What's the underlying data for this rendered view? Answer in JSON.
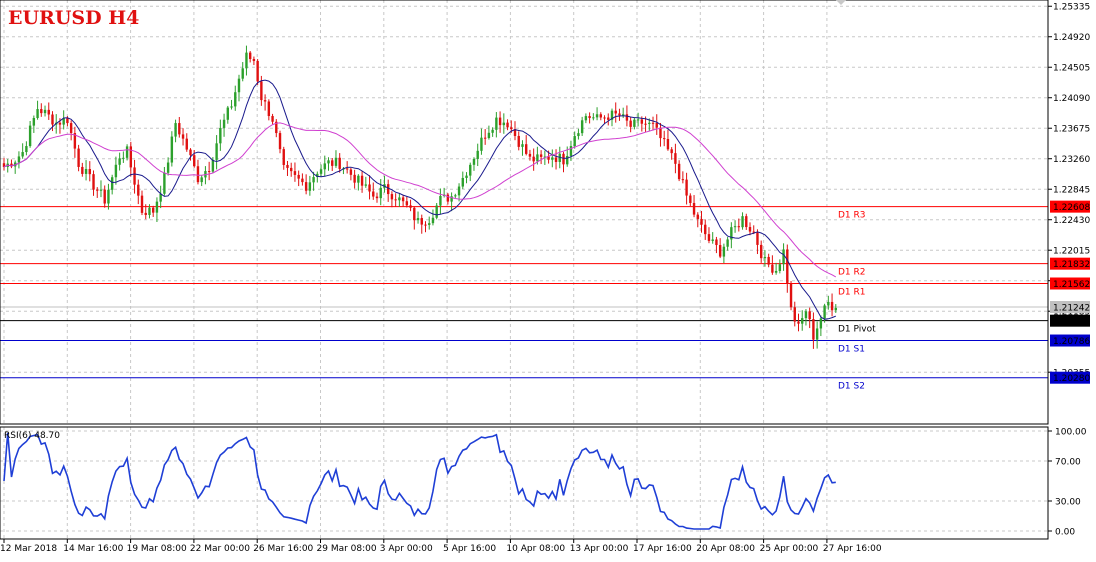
{
  "chart_data": {
    "type": "candlestick",
    "title": "EURUSD  H4",
    "colors": {
      "bull": "#2ca02c",
      "bear": "#e01010",
      "fast_ma": "#1a1a8c",
      "slow_ma": "#d040d0",
      "resistance": "#ff0000",
      "pivot": "#000000",
      "support": "#0000cc",
      "rsi": "#1f3fd6",
      "current_price_box": "#c0c0c0"
    },
    "price_axis": {
      "ylim": [
        1.1965,
        1.2542
      ],
      "ticks": [
        "1.25335",
        "1.24920",
        "1.24505",
        "1.24090",
        "1.23675",
        "1.23260",
        "1.22845",
        "1.22430",
        "1.22015",
        "1.21600",
        "1.21185",
        "1.20355"
      ]
    },
    "time_axis": {
      "labels": [
        "12 Mar 2018",
        "14 Mar 16:00",
        "19 Mar 08:00",
        "22 Mar 00:00",
        "26 Mar 16:00",
        "29 Mar 08:00",
        "3 Apr 00:00",
        "5 Apr 16:00",
        "10 Apr 08:00",
        "13 Apr 00:00",
        "17 Apr 16:00",
        "20 Apr 08:00",
        "25 Apr 00:00",
        "27 Apr 16:00"
      ]
    },
    "close_anchors": [
      [
        0,
        1.2315
      ],
      [
        3,
        1.2325
      ],
      [
        5,
        1.2335
      ],
      [
        9,
        1.2395
      ],
      [
        11,
        1.2388
      ],
      [
        14,
        1.2375
      ],
      [
        17,
        1.238
      ],
      [
        20,
        1.232
      ],
      [
        24,
        1.229
      ],
      [
        27,
        1.227
      ],
      [
        31,
        1.233
      ],
      [
        33,
        1.2335
      ],
      [
        37,
        1.2255
      ],
      [
        40,
        1.2255
      ],
      [
        43,
        1.23
      ],
      [
        46,
        1.2375
      ],
      [
        49,
        1.234
      ],
      [
        52,
        1.23
      ],
      [
        55,
        1.2315
      ],
      [
        58,
        1.2365
      ],
      [
        61,
        1.24
      ],
      [
        63,
        1.2435
      ],
      [
        65,
        1.2465
      ],
      [
        67,
        1.246
      ],
      [
        69,
        1.241
      ],
      [
        72,
        1.238
      ],
      [
        75,
        1.231
      ],
      [
        78,
        1.23
      ],
      [
        81,
        1.229
      ],
      [
        84,
        1.231
      ],
      [
        87,
        1.232
      ],
      [
        90,
        1.232
      ],
      [
        93,
        1.2305
      ],
      [
        96,
        1.229
      ],
      [
        99,
        1.2275
      ],
      [
        102,
        1.2285
      ],
      [
        105,
        1.2275
      ],
      [
        108,
        1.226
      ],
      [
        111,
        1.224
      ],
      [
        114,
        1.2245
      ],
      [
        117,
        1.227
      ],
      [
        120,
        1.2275
      ],
      [
        123,
        1.23
      ],
      [
        126,
        1.233
      ],
      [
        129,
        1.236
      ],
      [
        132,
        1.238
      ],
      [
        135,
        1.2375
      ],
      [
        138,
        1.235
      ],
      [
        141,
        1.2325
      ],
      [
        144,
        1.2325
      ],
      [
        147,
        1.233
      ],
      [
        150,
        1.2325
      ],
      [
        153,
        1.236
      ],
      [
        156,
        1.2385
      ],
      [
        159,
        1.238
      ],
      [
        162,
        1.2385
      ],
      [
        165,
        1.2385
      ],
      [
        168,
        1.237
      ],
      [
        171,
        1.2375
      ],
      [
        174,
        1.237
      ],
      [
        177,
        1.2345
      ],
      [
        180,
        1.232
      ],
      [
        183,
        1.2275
      ],
      [
        186,
        1.224
      ],
      [
        189,
        1.2215
      ],
      [
        192,
        1.22
      ],
      [
        195,
        1.2225
      ],
      [
        198,
        1.2245
      ],
      [
        201,
        1.2225
      ],
      [
        204,
        1.2185
      ],
      [
        207,
        1.2175
      ],
      [
        209,
        1.22
      ],
      [
        211,
        1.212
      ],
      [
        213,
        1.2095
      ],
      [
        215,
        1.212
      ],
      [
        217,
        1.2085
      ],
      [
        219,
        1.211
      ],
      [
        221,
        1.213
      ],
      [
        223,
        1.2123
      ]
    ],
    "series": [
      {
        "name": "",
        "kind": "sma",
        "period": 10
      },
      {
        "name": "",
        "kind": "sma",
        "period": 30
      }
    ],
    "levels": [
      {
        "name": "D1 R3",
        "value": 1.22608,
        "tag": "1.22608",
        "kind": "resistance"
      },
      {
        "name": "D1 R2",
        "value": 1.21832,
        "tag": "1.21832",
        "kind": "resistance"
      },
      {
        "name": "D1 R1",
        "value": 1.21562,
        "tag": "1.21562",
        "kind": "resistance"
      },
      {
        "name": "D1 Pivot",
        "value": 1.21056,
        "tag": "1.21056",
        "kind": "pivot"
      },
      {
        "name": "D1 S1",
        "value": 1.20786,
        "tag": "1.20786",
        "kind": "support"
      },
      {
        "name": "D1 S2",
        "value": 1.2028,
        "tag": "1.20280",
        "kind": "support"
      }
    ],
    "current_price": {
      "value": 1.21242,
      "tag": "1.21242"
    },
    "rsi": {
      "label": "RSI(6) 48.70",
      "period": 6,
      "value": 48.7,
      "ylim": [
        0,
        100
      ],
      "ticks": [
        "100.00",
        "70.00",
        "30.00",
        "0.00"
      ],
      "levels": [
        70,
        30
      ]
    }
  }
}
